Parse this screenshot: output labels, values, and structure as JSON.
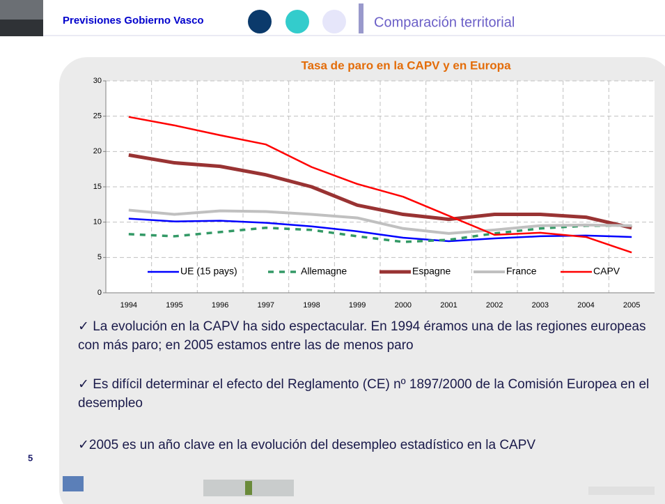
{
  "header": {
    "title": "Previsiones Gobierno Vasco",
    "section": "Comparación territorial"
  },
  "chart_data": {
    "type": "line",
    "title": "Tasa de paro en la CAPV y en Europa",
    "categories": [
      "1994",
      "1995",
      "1996",
      "1997",
      "1998",
      "1999",
      "2000",
      "2001",
      "2002",
      "2003",
      "2004",
      "2005"
    ],
    "series": [
      {
        "name": "UE (15 pays)",
        "color": "#0000ff",
        "dashed": false,
        "values": [
          10.5,
          10.1,
          10.2,
          9.9,
          9.4,
          8.7,
          7.8,
          7.3,
          7.7,
          8.0,
          8.1,
          7.9
        ]
      },
      {
        "name": "Allemagne",
        "color": "#339966",
        "dashed": true,
        "values": [
          8.3,
          8.0,
          8.6,
          9.2,
          8.9,
          8.0,
          7.2,
          7.5,
          8.4,
          9.1,
          9.5,
          9.5
        ]
      },
      {
        "name": "Espagne",
        "color": "#993333",
        "dashed": false,
        "values": [
          19.5,
          18.4,
          17.9,
          16.7,
          15.0,
          12.4,
          11.1,
          10.4,
          11.1,
          11.1,
          10.7,
          9.2
        ]
      },
      {
        "name": "France",
        "color": "#c0c0c0",
        "dashed": false,
        "values": [
          11.7,
          11.1,
          11.6,
          11.5,
          11.1,
          10.6,
          9.1,
          8.4,
          8.9,
          9.5,
          9.6,
          9.5
        ]
      },
      {
        "name": "CAPV",
        "color": "#ff0000",
        "dashed": false,
        "values": [
          24.9,
          23.7,
          22.3,
          21.0,
          17.8,
          15.4,
          13.6,
          10.9,
          8.2,
          8.5,
          7.9,
          5.7
        ]
      }
    ],
    "ylim": [
      0,
      30
    ],
    "yticks": [
      0,
      5,
      10,
      15,
      20,
      25,
      30
    ],
    "grid": true,
    "legend": "bottom"
  },
  "bullets": [
    "✓ La evolución en la CAPV ha sido espectacular. En 1994 éramos una de las regiones europeas con más paro; en 2005 estamos entre las de menos paro",
    "✓ Es difícil determinar el efecto del Reglamento (CE) nº 1897/2000 de la Comisión Europea en el desempleo",
    "✓2005 es un año clave en la evolución del desempleo estadístico en la CAPV"
  ],
  "page_number": "5"
}
